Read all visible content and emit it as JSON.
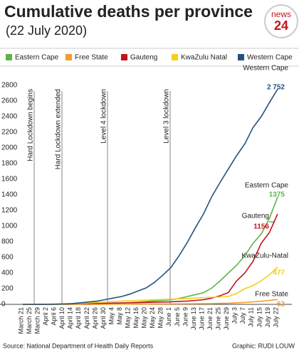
{
  "chart_data": {
    "type": "line",
    "title": "Cumulative deaths per province",
    "subtitle": "(22 July 2020)",
    "logo": [
      "news",
      "24"
    ],
    "source": "Source: National Department of Health Daily Reports",
    "credit": "Graphic: RUDI LOUW",
    "annotations": [
      "Hard Lockdown begins",
      "Hard Lockdown extended",
      "Level 4 lockdown",
      "Level 3 lockdown"
    ],
    "categories": [
      "March 21",
      "March 25",
      "March 29",
      "April 2",
      "April 6",
      "April 10",
      "April 14",
      "April 18",
      "April 22",
      "April 26",
      "April 30",
      "May 4",
      "May 8",
      "May 12",
      "May 16",
      "May 20",
      "May 24",
      "May 28",
      "June 1",
      "June 5",
      "June 9",
      "June 13",
      "June 17",
      "June 21",
      "June 25",
      "June 29",
      "July 3",
      "July 7",
      "July 11",
      "July 15",
      "July 19",
      "July 22"
    ],
    "ylim": [
      0,
      2800
    ],
    "yticks": [
      0,
      200,
      400,
      600,
      800,
      1000,
      1200,
      1400,
      1600,
      1800,
      2000,
      2200,
      2400,
      2600,
      2800
    ],
    "grid": false,
    "series": [
      {
        "name": "Eastern Cape",
        "label": "Eastern Cape",
        "color": "#5cb547",
        "values": [
          0,
          0,
          0,
          0,
          0,
          1,
          2,
          3,
          5,
          8,
          10,
          14,
          18,
          22,
          28,
          35,
          45,
          52,
          60,
          75,
          100,
          125,
          150,
          210,
          300,
          400,
          500,
          620,
          780,
          900,
          1100,
          1375
        ]
      },
      {
        "name": "Free State",
        "label": "Free State",
        "color": "#f39c2c",
        "values": [
          0,
          0,
          0,
          0,
          0,
          0,
          0,
          0,
          1,
          1,
          2,
          2,
          3,
          3,
          4,
          4,
          5,
          5,
          6,
          6,
          7,
          8,
          9,
          10,
          12,
          15,
          20,
          25,
          32,
          40,
          50,
          62
        ]
      },
      {
        "name": "Gauteng",
        "label": "Gauteng",
        "color": "#c1151d",
        "values": [
          0,
          0,
          0,
          1,
          2,
          4,
          6,
          8,
          10,
          12,
          14,
          16,
          18,
          20,
          22,
          25,
          28,
          30,
          33,
          38,
          42,
          50,
          60,
          80,
          110,
          150,
          300,
          400,
          550,
          780,
          920,
          1156
        ]
      },
      {
        "name": "KwaZulu Natal",
        "label": "KwaZulu-Natal",
        "color": "#f4cf1e",
        "values": [
          0,
          0,
          0,
          1,
          2,
          4,
          8,
          12,
          18,
          25,
          30,
          36,
          42,
          46,
          50,
          54,
          58,
          62,
          66,
          70,
          75,
          80,
          85,
          90,
          95,
          100,
          140,
          200,
          240,
          300,
          380,
          477
        ]
      },
      {
        "name": "Western Cape",
        "label": "Western Cape",
        "color": "#24527f",
        "value_labels": [
          null,
          null,
          null,
          null,
          null,
          null,
          null,
          null,
          null,
          null,
          null,
          null,
          null,
          null,
          null,
          null,
          null,
          null,
          null,
          null,
          null,
          null,
          null,
          null,
          null,
          null,
          null,
          null,
          null,
          null,
          null,
          "2 752"
        ],
        "values": [
          0,
          0,
          1,
          2,
          3,
          5,
          10,
          20,
          30,
          40,
          60,
          80,
          100,
          130,
          170,
          210,
          280,
          370,
          470,
          620,
          790,
          980,
          1160,
          1380,
          1560,
          1730,
          1900,
          2050,
          2260,
          2400,
          2580,
          2752
        ]
      }
    ]
  }
}
